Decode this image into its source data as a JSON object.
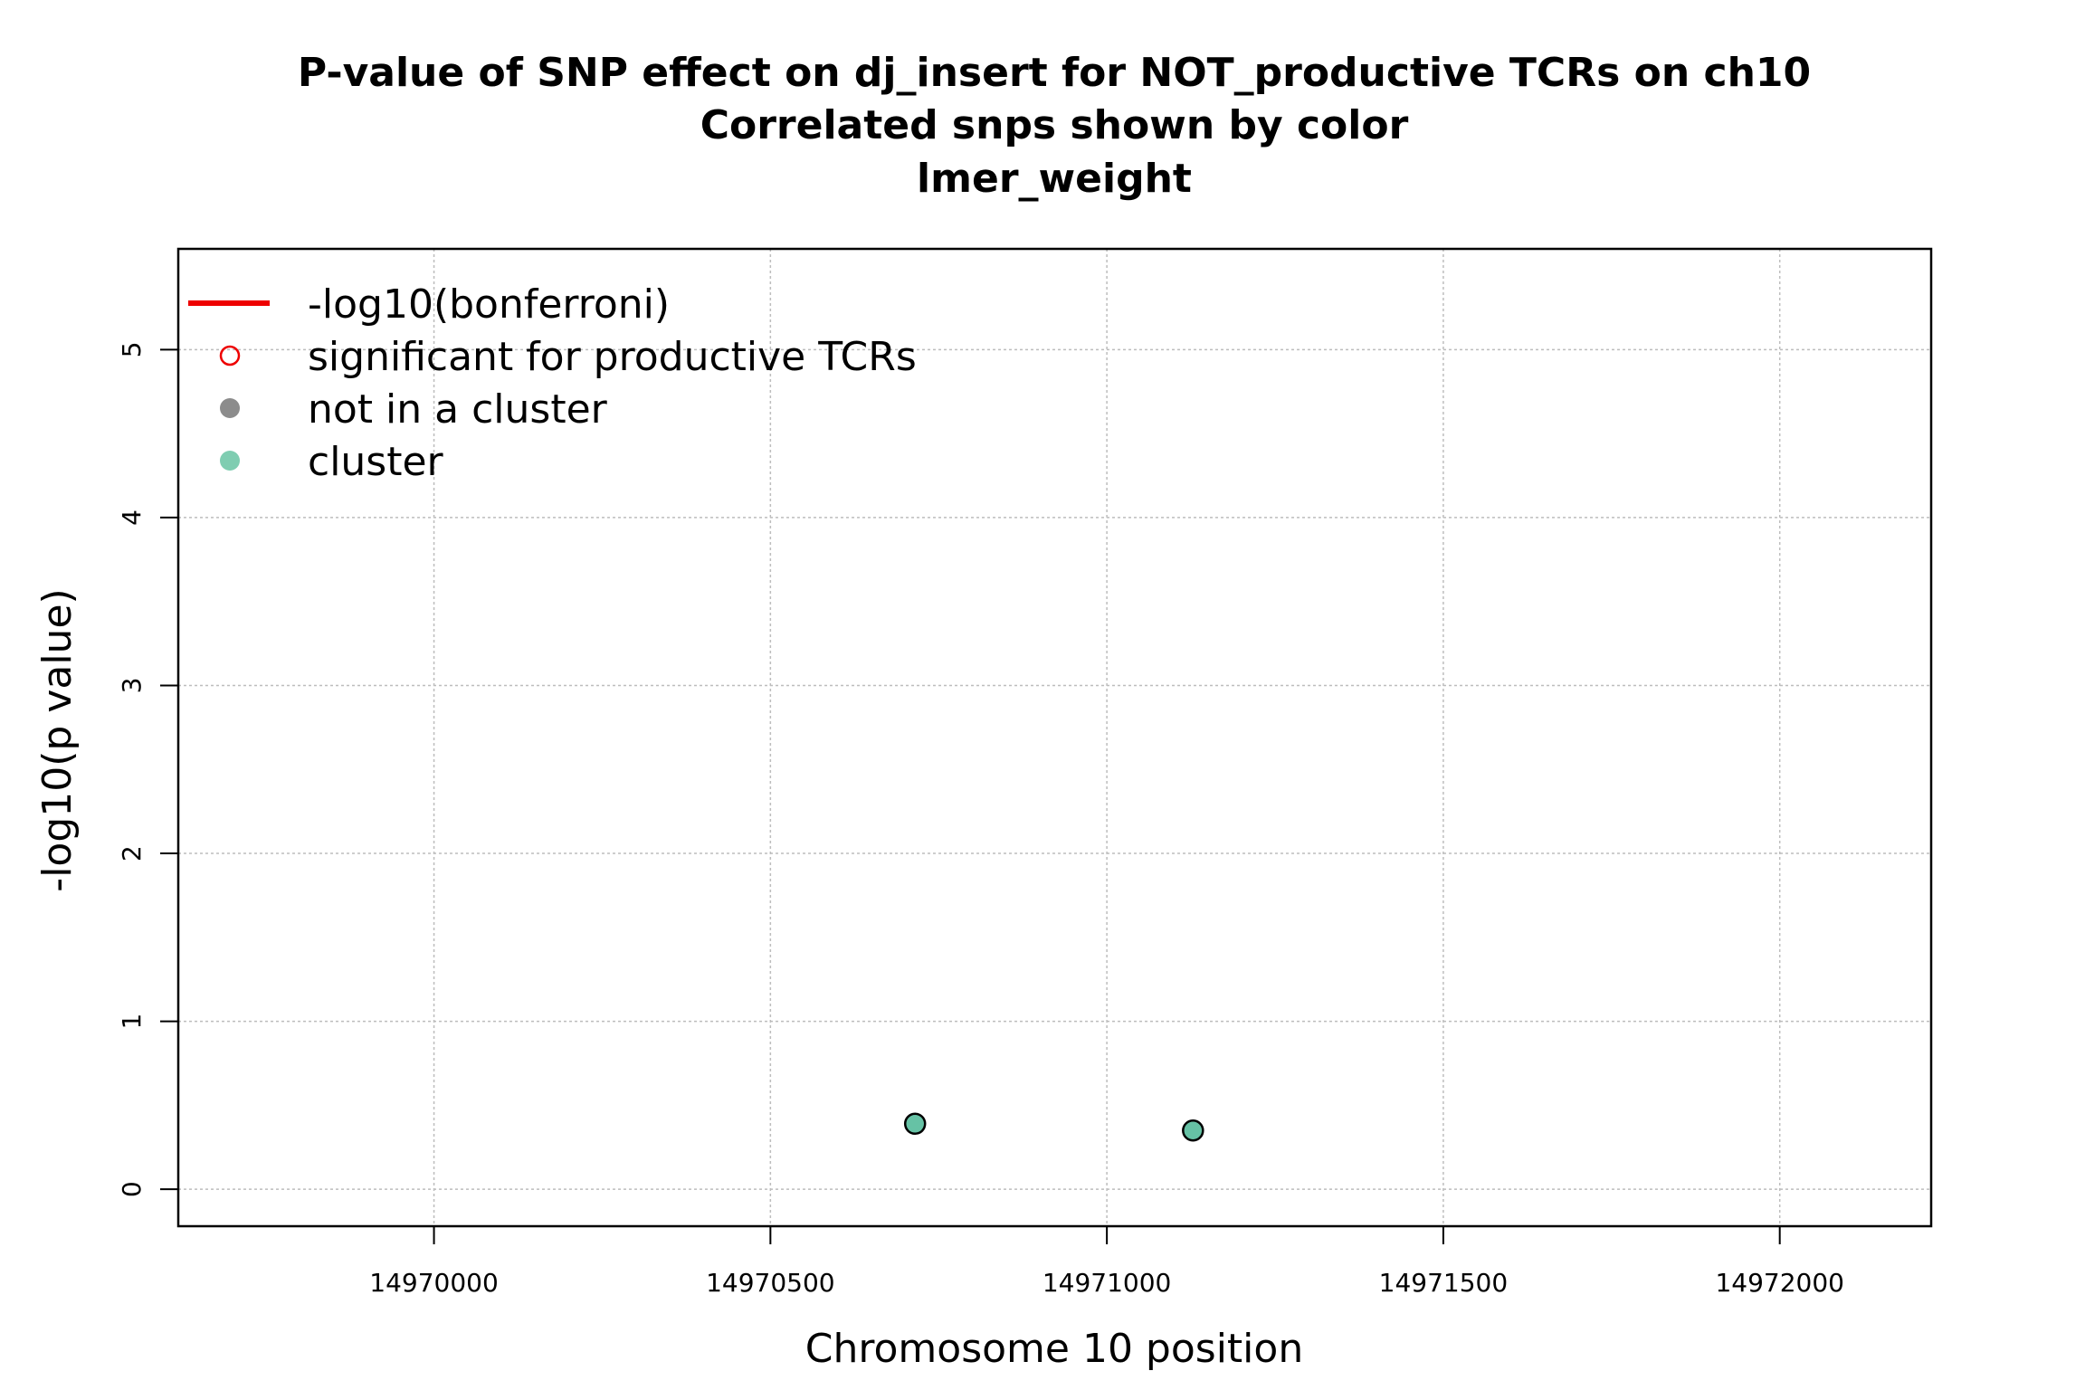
{
  "chart_data": {
    "type": "scatter",
    "title": [
      "P-value of SNP effect on dj_insert for NOT_productive TCRs on ch10",
      "Correlated snps shown by color",
      "lmer_weight"
    ],
    "xlabel": "Chromosome 10 position",
    "ylabel": "-log10(p value)",
    "xlim": [
      14969620,
      14972225
    ],
    "ylim": [
      -0.22,
      5.6
    ],
    "x_ticks": [
      14970000,
      14970500,
      14971000,
      14971500,
      14972000
    ],
    "x_tick_labels": [
      "14970000",
      "14970500",
      "14971000",
      "14971500",
      "14972000"
    ],
    "y_ticks": [
      0,
      1,
      2,
      3,
      4,
      5
    ],
    "y_tick_labels": [
      "0",
      "1",
      "2",
      "3",
      "4",
      "5"
    ],
    "grid": true,
    "legend_position": "top-left",
    "legend": [
      {
        "label": "-log10(bonferroni)",
        "marker": "line",
        "color": "#ee0000"
      },
      {
        "label": "significant for productive TCRs",
        "marker": "open-circle",
        "color": "#ee0000"
      },
      {
        "label": "not in a cluster",
        "marker": "filled-circle",
        "color": "#8c8c8c"
      },
      {
        "label": "cluster",
        "marker": "filled-circle",
        "color": "#7fcdb1"
      }
    ],
    "series": [
      {
        "name": "cluster",
        "color": "#66c2a5",
        "points": [
          {
            "x": 14970715,
            "y": 0.39
          },
          {
            "x": 14971128,
            "y": 0.35
          }
        ]
      }
    ]
  }
}
